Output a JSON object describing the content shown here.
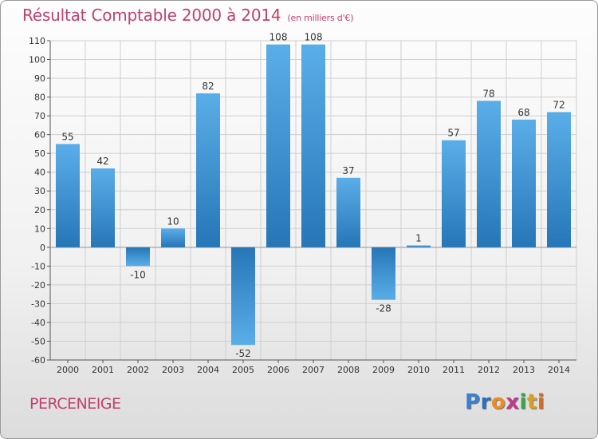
{
  "header": {
    "title": "Résultat Comptable 2000 à 2014",
    "subtitle": "(en milliers d'€)"
  },
  "footer": {
    "commune": "PERCENEIGE",
    "logo": [
      "P",
      "r",
      "o",
      "x",
      "i",
      "t",
      "i"
    ],
    "logo_colors": [
      "#3b7fd0",
      "#2d6fbd",
      "#ef8a1e",
      "#c33a8c",
      "#3aa64a",
      "#d8a020",
      "#e06a1a"
    ]
  },
  "chart_data": {
    "type": "bar",
    "title": "Résultat Comptable 2000 à 2014",
    "subtitle": "(en milliers d'€)",
    "categories": [
      "2000",
      "2001",
      "2002",
      "2003",
      "2004",
      "2005",
      "2006",
      "2007",
      "2008",
      "2009",
      "2010",
      "2011",
      "2012",
      "2013",
      "2014"
    ],
    "values": [
      55,
      42,
      -10,
      10,
      82,
      -52,
      108,
      108,
      37,
      -28,
      1,
      57,
      78,
      68,
      72
    ],
    "ylim": [
      -60,
      110
    ],
    "yticks": [
      110,
      100,
      90,
      80,
      70,
      60,
      50,
      40,
      30,
      20,
      10,
      0,
      -10,
      -20,
      -30,
      -40,
      -50,
      -60
    ],
    "grid": true,
    "bar_color_top": "#5aaee8",
    "bar_color_bottom": "#2676b8",
    "xlabel": "",
    "ylabel": ""
  }
}
